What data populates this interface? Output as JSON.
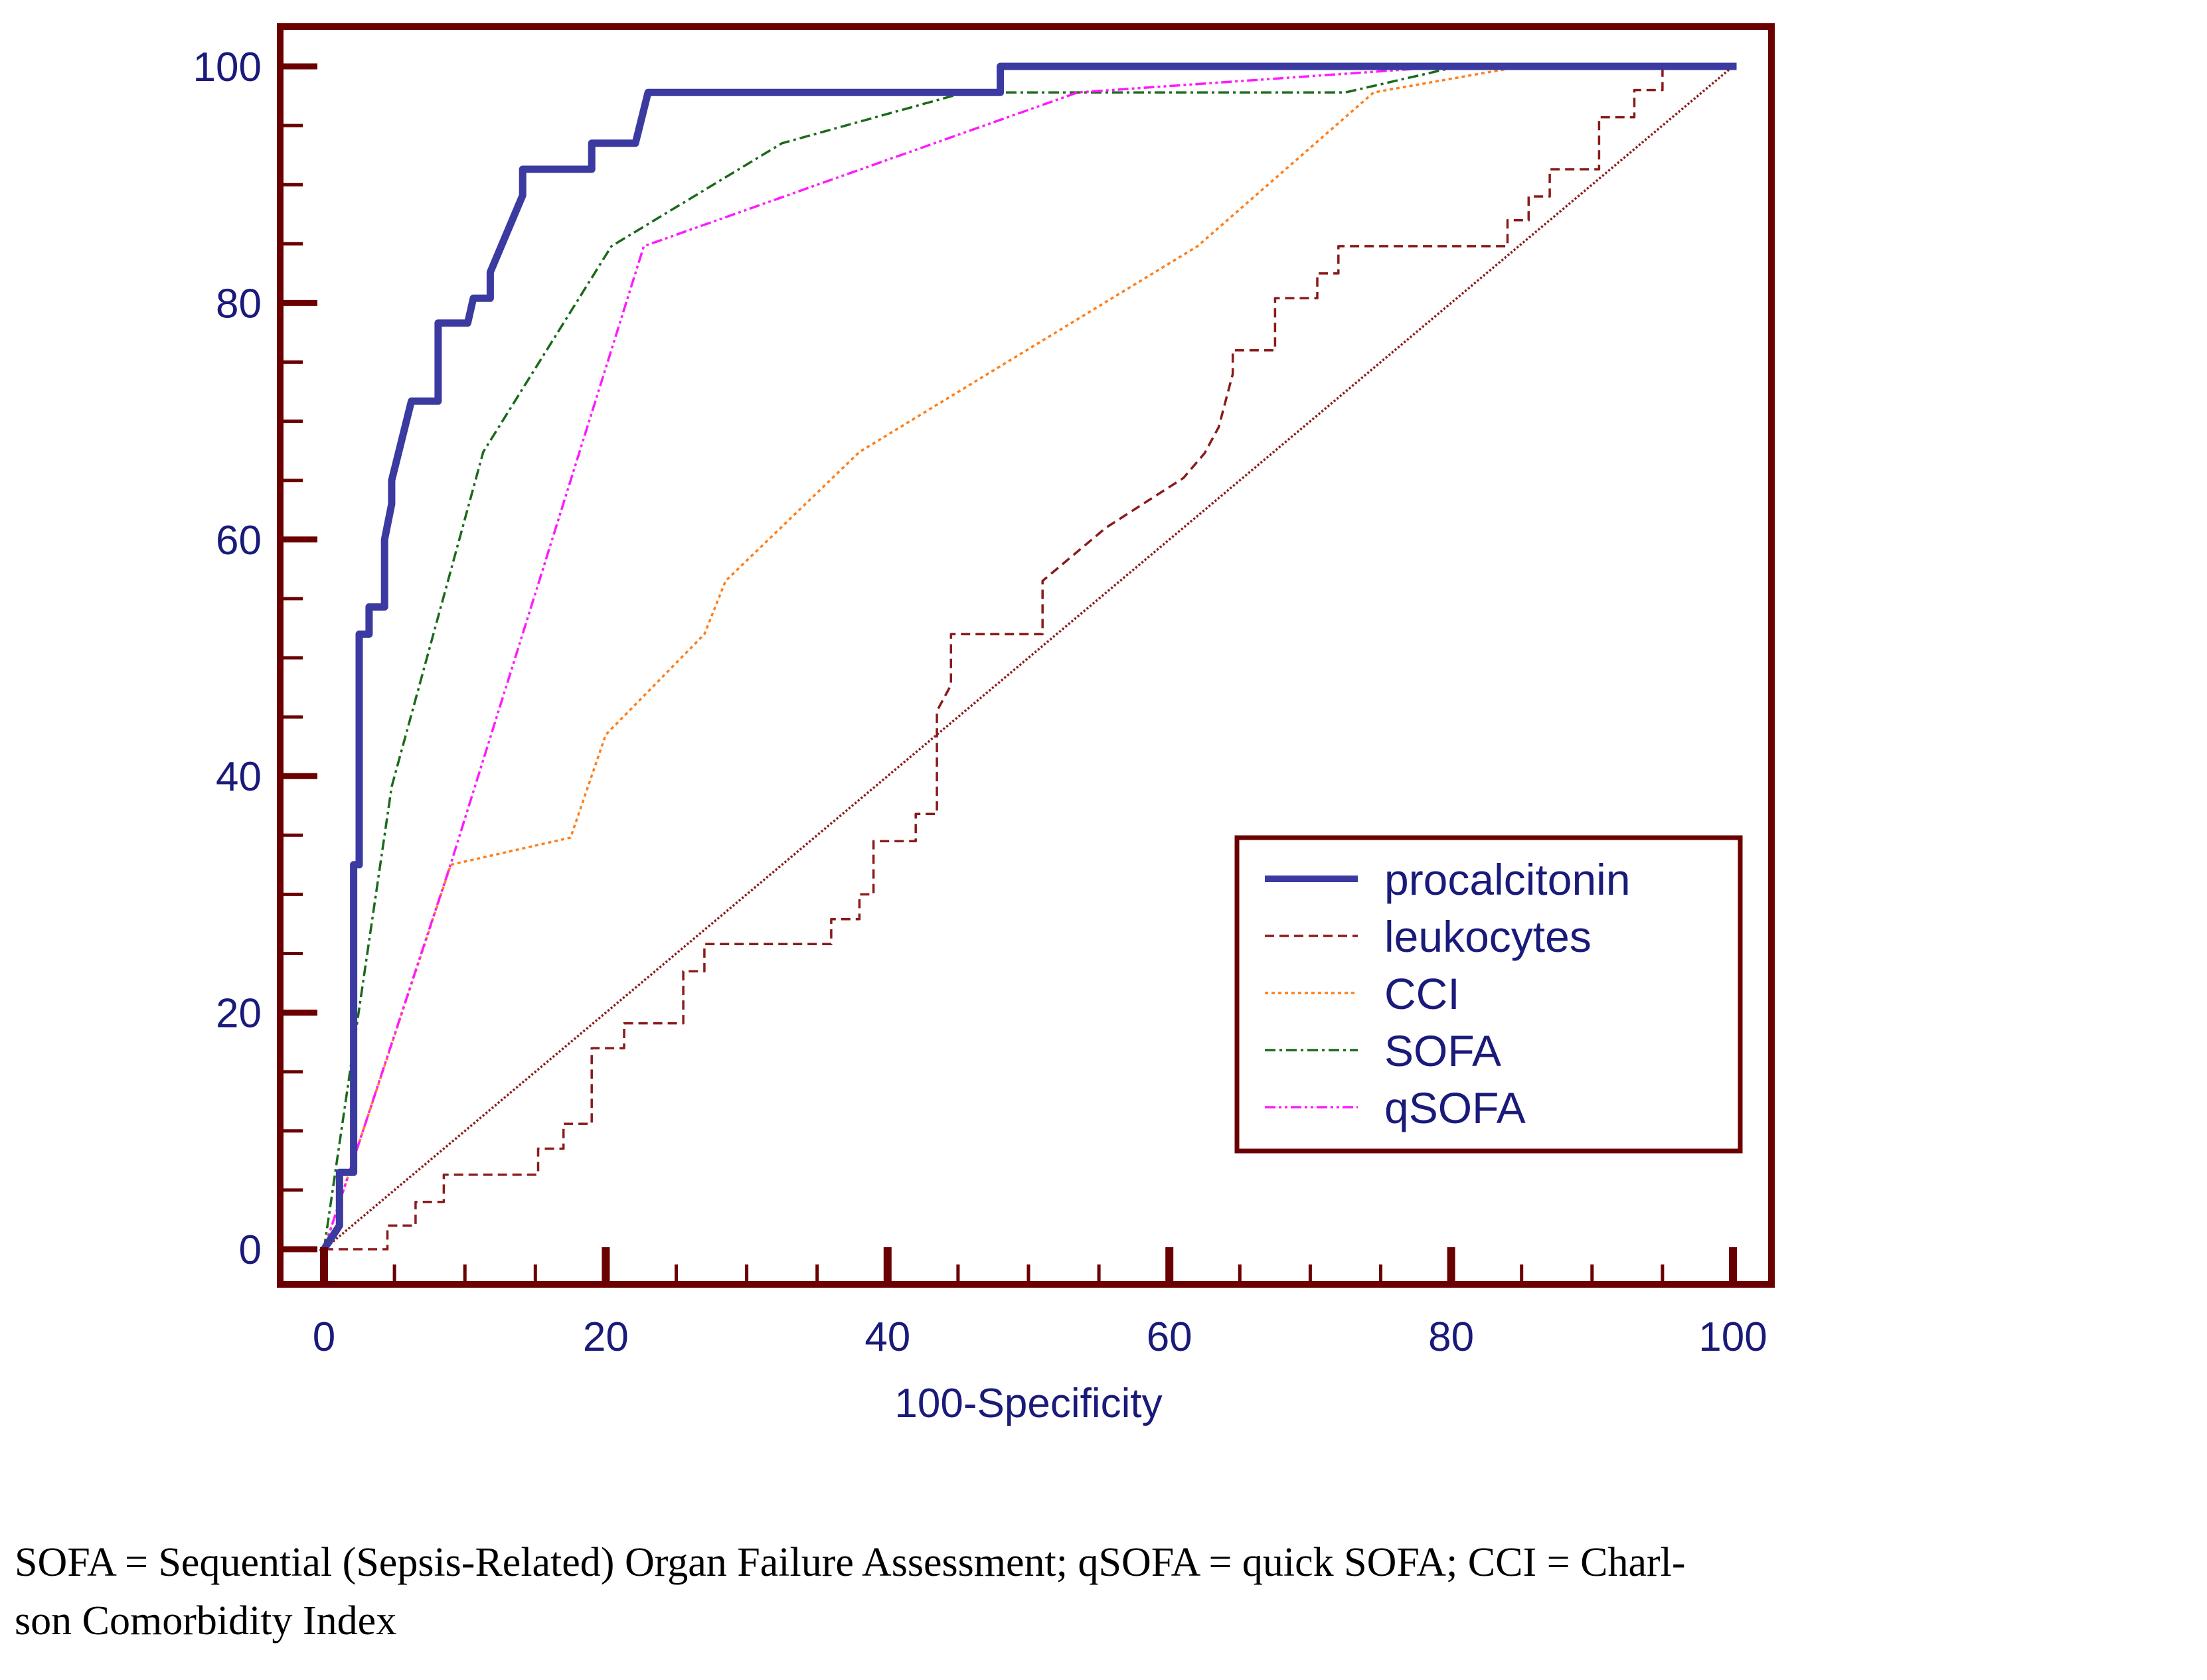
{
  "chart_data": {
    "type": "line",
    "title": "",
    "xlabel": "100-Specificity",
    "ylabel": "",
    "xlim": [
      0,
      100
    ],
    "ylim": [
      0,
      100
    ],
    "x_ticks": [
      0,
      20,
      40,
      60,
      80,
      100
    ],
    "y_ticks": [
      0,
      20,
      40,
      60,
      80,
      100
    ],
    "grid": false,
    "legend_position": "bottom-right",
    "series": [
      {
        "name": "procalcitonin",
        "color": "#3a3aa0",
        "style": "solid",
        "x": [
          0,
          1.1,
          1.1,
          2.1,
          2.1,
          2.5,
          2.5,
          3.2,
          3.2,
          4.3,
          4.3,
          4.8,
          4.8,
          6.2,
          6.2,
          8.1,
          8.1,
          10.2,
          10.6,
          11.8,
          11.8,
          14.1,
          14.1,
          19.0,
          19.0,
          22.1,
          23.0,
          23.0,
          48.0,
          48.0,
          100
        ],
        "y": [
          0,
          2,
          6.5,
          6.5,
          32.5,
          32.5,
          52,
          52,
          54.3,
          54.3,
          60,
          63,
          65,
          71.7,
          71.7,
          71.7,
          78.3,
          78.3,
          80.4,
          80.4,
          82.6,
          89.1,
          91.3,
          91.3,
          93.5,
          93.5,
          97.8,
          97.8,
          97.8,
          100,
          100
        ]
      },
      {
        "name": "leukocytes",
        "color": "#8b1a1a",
        "style": "dashed",
        "x": [
          0,
          4.5,
          4.5,
          6.5,
          6.5,
          8.5,
          8.5,
          15.2,
          15.2,
          17.0,
          17.0,
          19.0,
          19.0,
          21.3,
          21.3,
          25.5,
          25.5,
          27.0,
          27.0,
          36.0,
          36.0,
          38.0,
          38.0,
          39.0,
          39.0,
          42.0,
          42.0,
          43.5,
          43.5,
          44.5,
          44.5,
          51.0,
          51.0,
          55.5,
          55.5,
          61.0,
          61.0,
          62.5,
          62.5,
          63.5,
          63.5,
          64.5,
          64.5,
          67.5,
          67.5,
          70.5,
          70.5,
          72.0,
          72.0,
          84.0,
          84.0,
          85.5,
          85.5,
          87.0,
          87.0,
          90.5,
          90.5,
          93.0,
          93.0,
          95.0,
          95.0,
          100
        ],
        "y": [
          0,
          0,
          2,
          2,
          4,
          4,
          6.3,
          6.3,
          8.5,
          8.5,
          10.6,
          10.6,
          17,
          17,
          19.1,
          19.1,
          23.5,
          23.5,
          25.8,
          25.8,
          27.9,
          27.9,
          30,
          30,
          34.5,
          34.5,
          36.8,
          36.8,
          45.5,
          47.7,
          52,
          52,
          56.5,
          61,
          61,
          65.2,
          65.2,
          67.3,
          67.3,
          69.5,
          69.5,
          74,
          76,
          76,
          80.4,
          80.4,
          82.5,
          82.5,
          84.8,
          84.8,
          87,
          87,
          89,
          89,
          91.3,
          91.3,
          95.7,
          95.7,
          98,
          98,
          100,
          100
        ]
      },
      {
        "name": "CCI",
        "color": "#ff7f1a",
        "style": "dotted",
        "x": [
          0,
          9,
          17.5,
          20,
          27,
          28.5,
          38,
          62,
          74.5,
          85,
          100
        ],
        "y": [
          0,
          32.5,
          34.8,
          43.5,
          52,
          56.5,
          67.4,
          84.8,
          97.8,
          100,
          100
        ],
        "series_marker": "dotted"
      },
      {
        "name": "SOFA",
        "color": "#1a6a1a",
        "style": "dashdot",
        "x": [
          0,
          4.8,
          11.3,
          20.4,
          32.5,
          45.5,
          72.5,
          80.5,
          100
        ],
        "y": [
          0,
          39.1,
          67.4,
          84.8,
          93.5,
          97.8,
          97.8,
          100,
          100
        ]
      },
      {
        "name": "qSOFA",
        "color": "#ff1aff",
        "style": "dashdotdot",
        "x": [
          0,
          9,
          22.7,
          53.5,
          80,
          100
        ],
        "y": [
          0,
          32.6,
          84.8,
          97.8,
          100,
          100
        ]
      },
      {
        "name": "reference",
        "color": "#8b1a1a",
        "style": "fine-dotted",
        "x": [
          0,
          100
        ],
        "y": [
          0,
          100
        ],
        "in_legend": false
      }
    ]
  },
  "caption": {
    "line1": "SOFA = Sequential (Sepsis-Related) Organ Failure Assessment; qSOFA = quick SOFA; CCI = Charl-",
    "line2": "son Comorbidity Index"
  }
}
